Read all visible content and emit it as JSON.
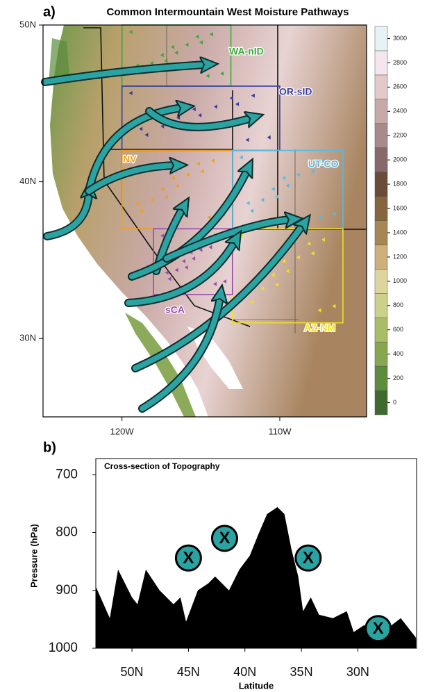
{
  "chart_data": [
    {
      "type": "map",
      "panel_label": "a)",
      "title": "Common Intermountain West Moisture Pathways",
      "xlim": [
        -125,
        -104.5
      ],
      "ylim": [
        25,
        50
      ],
      "xticks": [
        {
          "value": -120,
          "label": "120W"
        },
        {
          "value": -110,
          "label": "110W"
        }
      ],
      "yticks": [
        {
          "value": 30,
          "label": "30N"
        },
        {
          "value": 40,
          "label": "40N"
        },
        {
          "value": 50,
          "label": "50N"
        }
      ],
      "colorbar": {
        "clim": [
          -100,
          3100
        ],
        "ticks": [
          0,
          200,
          400,
          600,
          800,
          1000,
          1200,
          1400,
          1600,
          1800,
          2000,
          2200,
          2400,
          2600,
          2800,
          3000
        ],
        "colors": [
          "#3f6a2f",
          "#5f8c3c",
          "#86a650",
          "#a9bc66",
          "#cbd08a",
          "#ded59c",
          "#cdb07a",
          "#a88652",
          "#86653f",
          "#6b4c38",
          "#86696a",
          "#a98a8a",
          "#c7a9a8",
          "#e2cac8",
          "#f4e6ec",
          "#e6f3f5"
        ]
      },
      "regions": [
        {
          "name": "WA-nID",
          "color": "#3aa83a",
          "lon_range": [
            -120,
            -113.1
          ],
          "lat_range": [
            46.1,
            50
          ]
        },
        {
          "name": "OR-sID",
          "color": "#3a3aa0",
          "lon_range": [
            -120,
            -110
          ],
          "lat_range": [
            42,
            46.1
          ]
        },
        {
          "name": "NV",
          "color": "#f0a020",
          "lon_range": [
            -120,
            -113
          ],
          "lat_range": [
            37,
            42
          ]
        },
        {
          "name": "UT-CO",
          "color": "#5ab8e0",
          "lon_range": [
            -113,
            -106
          ],
          "lat_range": [
            37,
            42
          ]
        },
        {
          "name": "AZ-NM",
          "color": "#f0e020",
          "lon_range": [
            -113,
            -106
          ],
          "lat_range": [
            31,
            37
          ]
        },
        {
          "name": "sCA",
          "color": "#9a4ab0",
          "lon_range": [
            -118,
            -113
          ],
          "lat_range": [
            32.8,
            37
          ]
        }
      ]
    },
    {
      "type": "area",
      "panel_label": "b)",
      "title": "Cross-section of Topography",
      "xlabel": "Latitude",
      "ylabel": "Pressure (hPa)",
      "color": "#000000",
      "x": [
        53.19,
        51.96,
        51.23,
        50.0,
        49.51,
        48.77,
        47.55,
        46.32,
        45.71,
        45.21,
        44.17,
        43.25,
        42.64,
        41.41,
        40.49,
        39.57,
        38.83,
        38.04,
        37.12,
        36.5,
        35.89,
        35.28,
        34.85,
        34.17,
        33.44,
        32.21,
        30.98,
        30.37,
        29.45,
        28.53,
        27.91,
        27.0,
        26.2,
        24.85
      ],
      "values": [
        894,
        948,
        864,
        912,
        924,
        864,
        900,
        924,
        912,
        954,
        900,
        888,
        876,
        900,
        864,
        840,
        804,
        768,
        756,
        768,
        828,
        876,
        936,
        912,
        942,
        948,
        936,
        972,
        960,
        978,
        975,
        960,
        948,
        982
      ],
      "xlim": [
        53.2,
        24.8
      ],
      "ylim": [
        1000,
        672
      ],
      "xticks": [
        {
          "value": 50,
          "label": "50N"
        },
        {
          "value": 45,
          "label": "45N"
        },
        {
          "value": 40,
          "label": "40N"
        },
        {
          "value": 35,
          "label": "35N"
        },
        {
          "value": 30,
          "label": "30N"
        }
      ],
      "yticks": [
        700,
        800,
        900,
        1000
      ],
      "markers": {
        "label": "X",
        "x": [
          45,
          41.8,
          34.4,
          28.2
        ],
        "y": [
          844,
          810,
          844,
          966
        ]
      }
    }
  ]
}
